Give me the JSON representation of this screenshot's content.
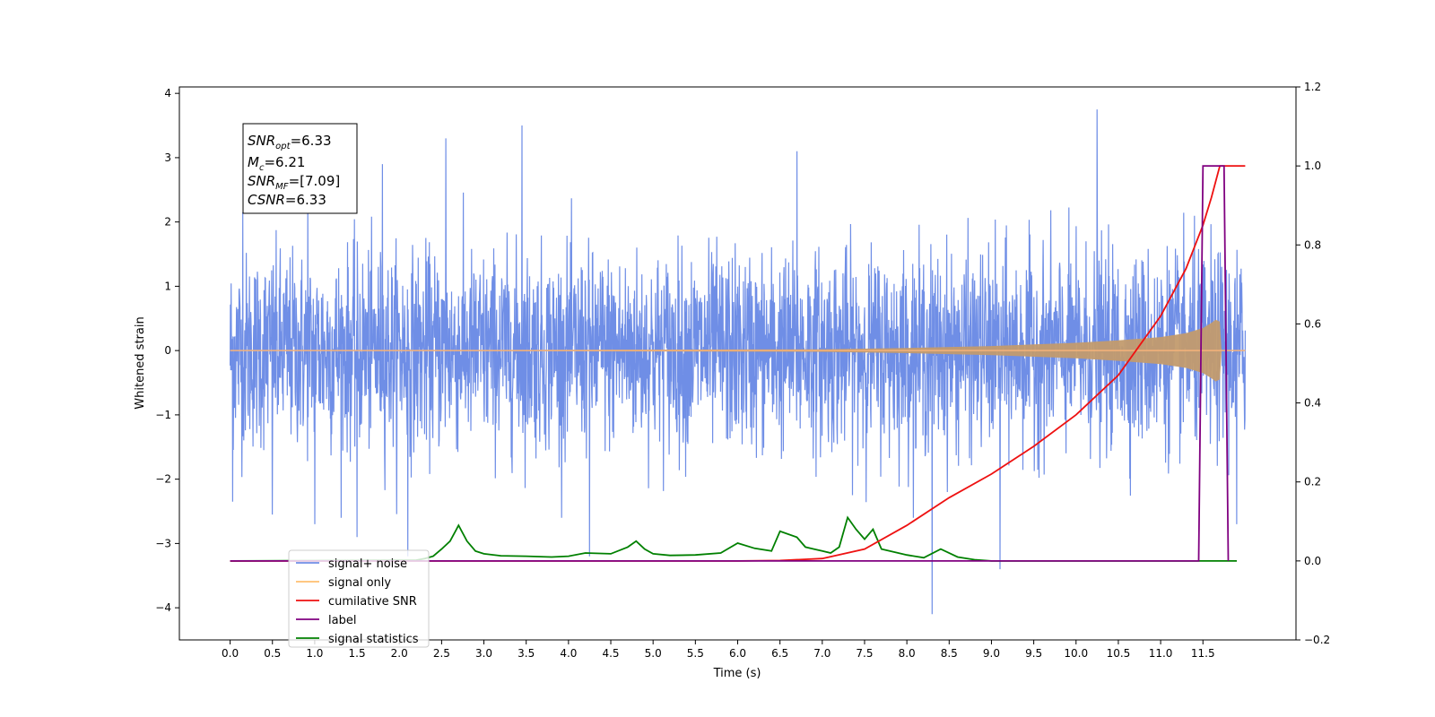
{
  "chart_data": {
    "type": "line",
    "xlabel": "Time (s)",
    "ylabel": "Whitened strain",
    "xlim": [
      -0.6,
      12.6
    ],
    "ylim": [
      -4.5,
      4.1
    ],
    "y2lim": [
      -0.2,
      1.2
    ],
    "x_ticks": [
      0.0,
      0.5,
      1.0,
      1.5,
      2.0,
      2.5,
      3.0,
      3.5,
      4.0,
      4.5,
      5.0,
      5.5,
      6.0,
      6.5,
      7.0,
      7.5,
      8.0,
      8.5,
      9.0,
      9.5,
      10.0,
      10.5,
      11.0,
      11.5
    ],
    "x_tick_labels": [
      "0.0",
      "0.5",
      "1.0",
      "1.5",
      "2.0",
      "2.5",
      "3.0",
      "3.5",
      "4.0",
      "4.5",
      "5.0",
      "5.5",
      "6.0",
      "6.5",
      "7.0",
      "7.5",
      "8.0",
      "8.5",
      "9.0",
      "9.5",
      "10.0",
      "10.5",
      "11.0",
      "11.5"
    ],
    "y_ticks": [
      -4,
      -3,
      -2,
      -1,
      0,
      1,
      2,
      3,
      4
    ],
    "y_tick_labels": [
      "−4",
      "−3",
      "−2",
      "−1",
      "0",
      "1",
      "2",
      "3",
      "4"
    ],
    "y2_ticks": [
      -0.2,
      0.0,
      0.2,
      0.4,
      0.6,
      0.8,
      1.0,
      1.2
    ],
    "y2_tick_labels": [
      "−0.2",
      "0.0",
      "0.2",
      "0.4",
      "0.6",
      "0.8",
      "1.0",
      "1.2"
    ],
    "legend_position": "lower-left",
    "annotation": {
      "lines": [
        {
          "base": "SNR",
          "sub": "opt",
          "value": "=6.33"
        },
        {
          "base": "M",
          "sub": "c",
          "value": "=6.21"
        },
        {
          "base": "SNR",
          "sub": "MF",
          "value": "=[7.09]"
        },
        {
          "base": "CSNR",
          "sub": "",
          "value": "=6.33"
        }
      ]
    },
    "series": [
      {
        "name": "signal+ noise",
        "axis": "left",
        "color": "#6f8ee6",
        "description_range": [
          0.0,
          12.0
        ],
        "amplitude_peak_points": [
          [
            0.03,
            -2.35
          ],
          [
            0.15,
            2.15
          ],
          [
            0.5,
            -2.55
          ],
          [
            0.92,
            2.5
          ],
          [
            1.0,
            -2.7
          ],
          [
            1.5,
            -2.9
          ],
          [
            1.8,
            2.9
          ],
          [
            2.1,
            -3.2
          ],
          [
            2.55,
            3.3
          ],
          [
            3.45,
            3.5
          ],
          [
            4.25,
            -3.2
          ],
          [
            6.7,
            3.1
          ],
          [
            8.3,
            -4.1
          ],
          [
            9.1,
            -3.4
          ],
          [
            10.25,
            3.75
          ],
          [
            11.9,
            -2.7
          ]
        ]
      },
      {
        "name": "signal only",
        "axis": "left",
        "color": "#c29b6e",
        "envelope_x": [
          0.0,
          7.0,
          8.0,
          9.0,
          10.0,
          10.5,
          11.0,
          11.3,
          11.5,
          11.6,
          11.65,
          11.7,
          11.72
        ],
        "envelope_y": [
          0.0,
          0.02,
          0.04,
          0.07,
          0.12,
          0.16,
          0.21,
          0.27,
          0.35,
          0.43,
          0.48,
          0.45,
          0.0
        ]
      },
      {
        "name": "cumilative SNR",
        "axis": "right",
        "color": "#ee1111",
        "x": [
          0.0,
          6.0,
          6.5,
          7.0,
          7.5,
          8.0,
          8.5,
          9.0,
          9.5,
          10.0,
          10.5,
          11.0,
          11.3,
          11.5,
          11.6,
          11.7,
          11.75,
          12.0
        ],
        "y": [
          0.0,
          0.0,
          0.001,
          0.006,
          0.03,
          0.09,
          0.16,
          0.22,
          0.29,
          0.37,
          0.47,
          0.62,
          0.74,
          0.85,
          0.92,
          1.0,
          1.0,
          1.0
        ]
      },
      {
        "name": "label",
        "axis": "right",
        "color": "#800080",
        "x": [
          0.0,
          11.45,
          11.5,
          11.75,
          11.8
        ],
        "y": [
          0.0,
          0.0,
          1.0,
          1.0,
          0.0
        ]
      },
      {
        "name": "signal statistics",
        "axis": "right",
        "color": "#008000",
        "x": [
          0.0,
          2.2,
          2.3,
          2.4,
          2.5,
          2.6,
          2.7,
          2.8,
          2.9,
          3.0,
          3.2,
          3.5,
          3.8,
          4.0,
          4.2,
          4.5,
          4.7,
          4.8,
          4.9,
          5.0,
          5.2,
          5.5,
          5.8,
          6.0,
          6.2,
          6.4,
          6.5,
          6.7,
          6.8,
          6.9,
          7.0,
          7.1,
          7.2,
          7.3,
          7.4,
          7.5,
          7.6,
          7.7,
          8.0,
          8.2,
          8.4,
          8.6,
          8.8,
          9.0,
          11.5,
          11.9
        ],
        "y": [
          0.0,
          0.002,
          0.006,
          0.012,
          0.03,
          0.05,
          0.09,
          0.05,
          0.025,
          0.018,
          0.013,
          0.012,
          0.01,
          0.012,
          0.02,
          0.018,
          0.035,
          0.05,
          0.03,
          0.018,
          0.014,
          0.015,
          0.02,
          0.045,
          0.032,
          0.025,
          0.075,
          0.06,
          0.035,
          0.03,
          0.025,
          0.02,
          0.035,
          0.11,
          0.08,
          0.055,
          0.08,
          0.03,
          0.015,
          0.008,
          0.03,
          0.01,
          0.003,
          0.0,
          0.0,
          0.0
        ]
      }
    ]
  }
}
